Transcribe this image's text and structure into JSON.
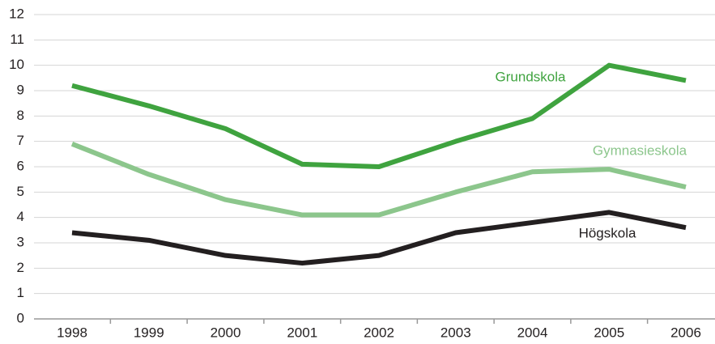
{
  "chart_data": {
    "type": "line",
    "categories": [
      "1998",
      "1999",
      "2000",
      "2001",
      "2002",
      "2003",
      "2004",
      "2005",
      "2006"
    ],
    "series": [
      {
        "name": "Grundskola",
        "color": "#3fa33f",
        "values": [
          9.2,
          8.4,
          7.5,
          6.1,
          6.0,
          7.0,
          7.9,
          10.0,
          9.4
        ]
      },
      {
        "name": "Gymnasieskola",
        "color": "#8cc68c",
        "values": [
          6.9,
          5.7,
          4.7,
          4.1,
          4.1,
          5.0,
          5.8,
          5.9,
          5.2
        ]
      },
      {
        "name": "Högskola",
        "color": "#231f20",
        "values": [
          3.4,
          3.1,
          2.5,
          2.2,
          2.5,
          3.4,
          3.8,
          4.2,
          3.6
        ]
      }
    ],
    "ylim": [
      0,
      12
    ],
    "yticks": [
      0,
      1,
      2,
      3,
      4,
      5,
      6,
      7,
      8,
      9,
      10,
      11,
      12
    ],
    "grid": true
  }
}
